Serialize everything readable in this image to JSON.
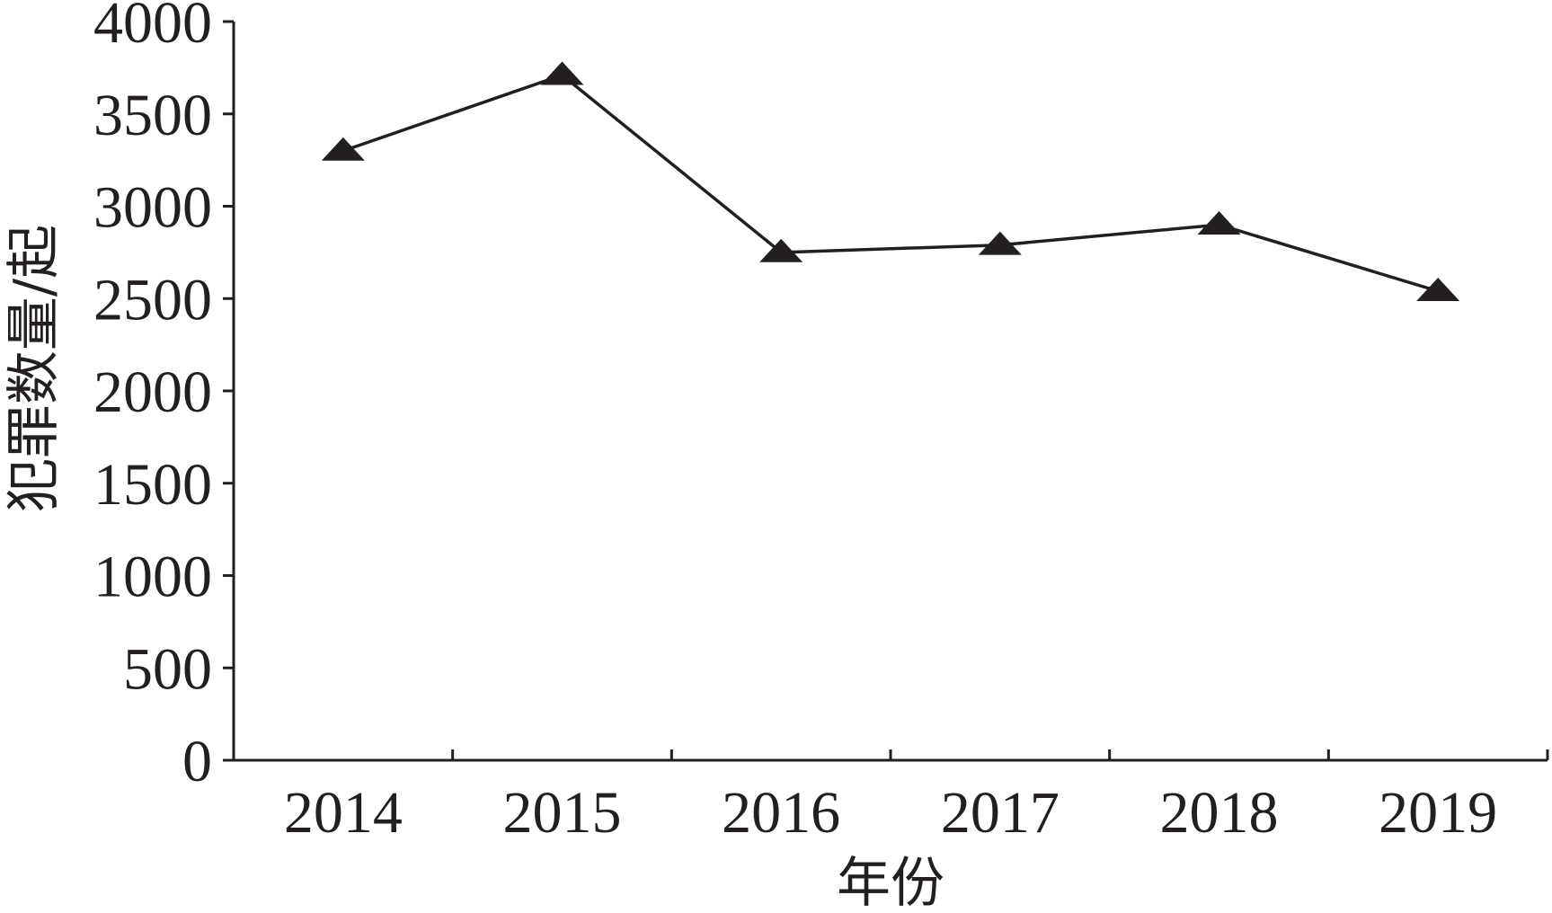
{
  "chart_data": {
    "type": "line",
    "title": "",
    "xlabel": "年份",
    "ylabel": "犯罪数量/起",
    "categories": [
      "2014",
      "2015",
      "2016",
      "2017",
      "2018",
      "2019"
    ],
    "series": [
      {
        "values": [
          3300,
          3710,
          2750,
          2790,
          2900,
          2540
        ],
        "marker": "triangle"
      }
    ],
    "ylim": [
      0,
      4000
    ],
    "yticks": [
      0,
      500,
      1000,
      1500,
      2000,
      2500,
      3000,
      3500,
      4000
    ],
    "grid": false,
    "colors": {
      "line": "#231f20",
      "axis": "#231f20",
      "text": "#231f20"
    }
  }
}
